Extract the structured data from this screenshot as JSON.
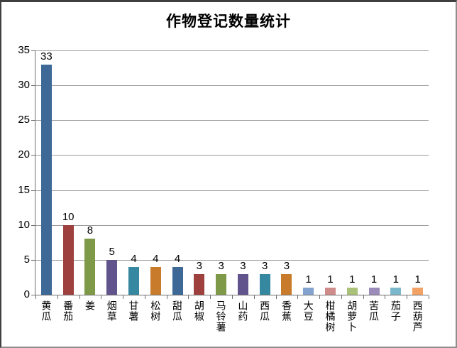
{
  "chart_data": {
    "type": "bar",
    "title": "作物登记数量统计",
    "categories": [
      "黄瓜",
      "番茄",
      "姜",
      "烟草",
      "甘薯",
      "松树",
      "甜瓜",
      "胡椒",
      "马铃薯",
      "山药",
      "西瓜",
      "香蕉",
      "大豆",
      "柑橘树",
      "胡萝卜",
      "苦瓜",
      "茄子",
      "西葫芦"
    ],
    "values": [
      33,
      10,
      8,
      5,
      4,
      4,
      4,
      3,
      3,
      3,
      3,
      3,
      1,
      1,
      1,
      1,
      1,
      1
    ],
    "bar_colors": [
      "#3E6896",
      "#9E413E",
      "#7E9A49",
      "#61538B",
      "#35889F",
      "#C87B2A",
      "#3E6896",
      "#9E413E",
      "#7E9A49",
      "#61538B",
      "#35889F",
      "#C87B2A",
      "#84A2CE",
      "#CE8B8A",
      "#A9C178",
      "#9B8BB8",
      "#7CB8CC",
      "#F2A264"
    ],
    "value_labels": [
      33,
      10,
      8,
      5,
      4,
      4,
      4,
      3,
      3,
      3,
      3,
      3,
      1,
      1,
      1,
      1,
      1,
      1
    ],
    "xlabel": "",
    "ylabel": "",
    "ylim": [
      0,
      35
    ],
    "yticks": [
      0,
      5,
      10,
      15,
      20,
      25,
      30,
      35
    ],
    "grid": true,
    "legend": false,
    "gridline_color": "#9D9D9D",
    "axis_color": "#6F6F6F",
    "text_color": "#000000",
    "background_color": "#FFFFFF"
  }
}
